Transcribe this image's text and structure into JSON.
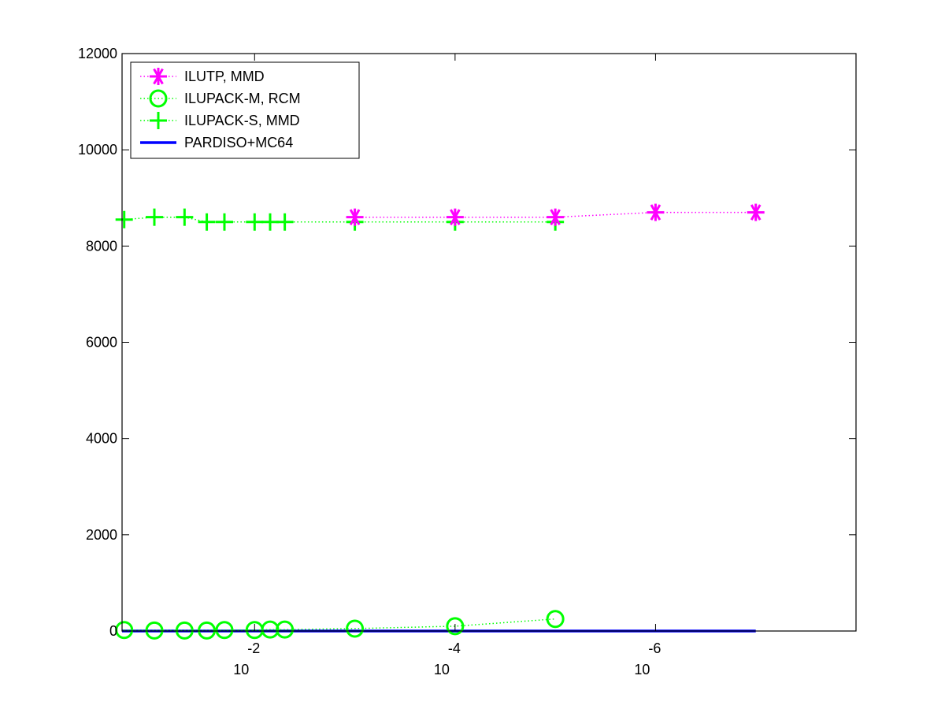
{
  "chart_data": {
    "type": "line",
    "title": "",
    "xlabel": "",
    "ylabel": "",
    "xscale": "log",
    "xaxis_reversed": true,
    "xlim": [
      0.21,
      1e-08
    ],
    "ylim": [
      0,
      12000
    ],
    "yticks": [
      0,
      2000,
      4000,
      6000,
      8000,
      10000,
      12000
    ],
    "xtick_labels": [
      {
        "value": 0.01,
        "base": "10",
        "exponent": "-2"
      },
      {
        "value": 0.0001,
        "base": "10",
        "exponent": "-4"
      },
      {
        "value": 1e-06,
        "base": "10",
        "exponent": "-6"
      }
    ],
    "grid": false,
    "legend_position": "top-left",
    "series": [
      {
        "name": "ILUTP, MMD",
        "color": "#ff00ff",
        "marker": "asterisk",
        "line_style": "dotted",
        "x": [
          0.001,
          0.0001,
          1e-05,
          1e-06,
          1e-07
        ],
        "y": [
          8600,
          8600,
          8600,
          8700,
          8700
        ]
      },
      {
        "name": "ILUPACK-M, RCM",
        "color": "#00ff00",
        "marker": "circle",
        "line_style": "dotted",
        "x": [
          0.2,
          0.1,
          0.05,
          0.03,
          0.02,
          0.01,
          0.007,
          0.005,
          0.001,
          0.0001,
          1e-05
        ],
        "y": [
          20,
          10,
          10,
          10,
          20,
          20,
          30,
          30,
          50,
          100,
          250
        ]
      },
      {
        "name": "ILUPACK-S, MMD",
        "color": "#00ff00",
        "marker": "plus",
        "line_style": "dotted",
        "x": [
          0.2,
          0.1,
          0.05,
          0.03,
          0.02,
          0.01,
          0.007,
          0.005,
          0.001,
          0.0001,
          1e-05
        ],
        "y": [
          8550,
          8600,
          8600,
          8500,
          8500,
          8500,
          8500,
          8500,
          8500,
          8500,
          8500
        ]
      },
      {
        "name": "PARDISO+MC64",
        "color": "#0000ff",
        "marker": "none",
        "line_style": "solid",
        "x": [
          0.21,
          1e-07
        ],
        "y": [
          0,
          0
        ]
      }
    ]
  }
}
